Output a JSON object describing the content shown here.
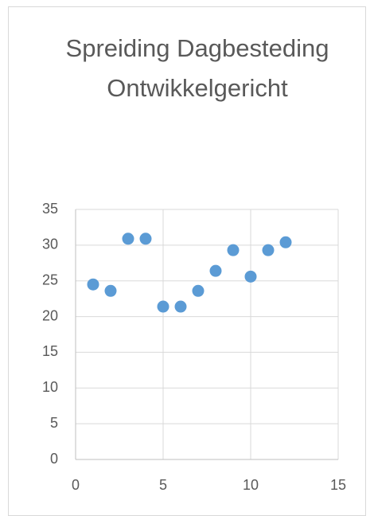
{
  "chart_data": {
    "type": "scatter",
    "title": "Spreiding Dagbesteding Ontwikkelgericht",
    "series": [
      {
        "name": "Dagbesteding",
        "color": "#5b9bd5",
        "x": [
          1,
          2,
          3,
          4,
          5,
          6,
          7,
          8,
          9,
          10,
          11,
          12
        ],
        "values": [
          24.5,
          23.6,
          30.9,
          30.9,
          21.4,
          21.4,
          23.6,
          26.4,
          29.3,
          25.6,
          29.3,
          30.4
        ]
      }
    ],
    "xlim": [
      0,
      15
    ],
    "xticks": [
      0,
      5,
      10,
      15
    ],
    "ylim": [
      0,
      35
    ],
    "yticks": [
      0,
      5,
      10,
      15,
      20,
      25,
      30,
      35
    ],
    "grid": true
  }
}
